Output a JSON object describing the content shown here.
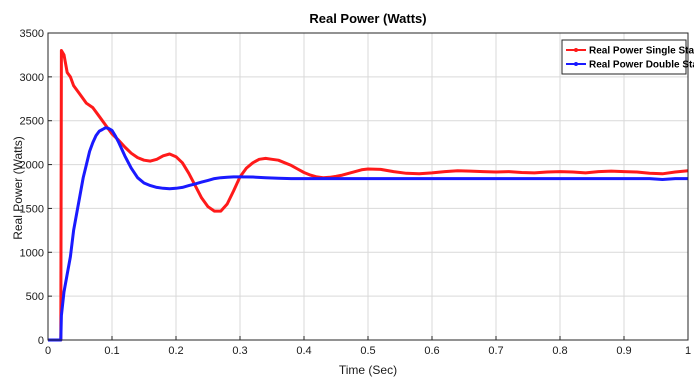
{
  "chart_data": {
    "type": "line",
    "title": "Real Power (Watts)",
    "xlabel": "Time (Sec)",
    "ylabel": "Real Power (Watts)",
    "xlim": [
      0,
      1
    ],
    "ylim": [
      0,
      3500
    ],
    "xticks": [
      0,
      0.1,
      0.2,
      0.3,
      0.4,
      0.5,
      0.6,
      0.7,
      0.8,
      0.9,
      1
    ],
    "xtick_labels": [
      "0",
      "0.1",
      "0.2",
      "0.3",
      "0.4",
      "0.5",
      "0.6",
      "0.7",
      "0.8",
      "0.9",
      "1"
    ],
    "yticks": [
      0,
      500,
      1000,
      1500,
      2000,
      2500,
      3000,
      3500
    ],
    "ytick_labels": [
      "0",
      "500",
      "1000",
      "1500",
      "2000",
      "2500",
      "3000",
      "3500"
    ],
    "grid": true,
    "legend_position": "top-right",
    "series": [
      {
        "name": "Real Power Single Stage",
        "color": "#ff1a1a",
        "x": [
          0,
          0.02,
          0.021,
          0.025,
          0.03,
          0.035,
          0.04,
          0.05,
          0.06,
          0.07,
          0.08,
          0.09,
          0.1,
          0.11,
          0.12,
          0.13,
          0.14,
          0.15,
          0.16,
          0.17,
          0.18,
          0.19,
          0.2,
          0.21,
          0.22,
          0.23,
          0.24,
          0.25,
          0.26,
          0.27,
          0.28,
          0.29,
          0.3,
          0.31,
          0.32,
          0.33,
          0.34,
          0.35,
          0.36,
          0.37,
          0.38,
          0.39,
          0.4,
          0.41,
          0.42,
          0.43,
          0.44,
          0.45,
          0.46,
          0.47,
          0.48,
          0.49,
          0.5,
          0.52,
          0.54,
          0.56,
          0.58,
          0.6,
          0.62,
          0.64,
          0.66,
          0.68,
          0.7,
          0.72,
          0.74,
          0.76,
          0.78,
          0.8,
          0.82,
          0.84,
          0.86,
          0.88,
          0.9,
          0.92,
          0.94,
          0.96,
          0.98,
          1.0
        ],
        "y": [
          0,
          0,
          3300,
          3250,
          3050,
          3000,
          2900,
          2800,
          2700,
          2650,
          2550,
          2450,
          2350,
          2280,
          2200,
          2130,
          2080,
          2050,
          2040,
          2060,
          2100,
          2120,
          2090,
          2020,
          1900,
          1760,
          1620,
          1520,
          1470,
          1470,
          1550,
          1700,
          1860,
          1960,
          2020,
          2060,
          2070,
          2060,
          2050,
          2020,
          1990,
          1950,
          1910,
          1880,
          1860,
          1850,
          1855,
          1865,
          1880,
          1900,
          1920,
          1940,
          1950,
          1945,
          1920,
          1900,
          1895,
          1905,
          1920,
          1930,
          1925,
          1920,
          1915,
          1920,
          1910,
          1905,
          1915,
          1920,
          1915,
          1905,
          1920,
          1925,
          1920,
          1915,
          1900,
          1895,
          1915,
          1930
        ]
      },
      {
        "name": "Real Power Double Stage",
        "color": "#1a1aff",
        "x": [
          0,
          0.02,
          0.021,
          0.025,
          0.03,
          0.035,
          0.04,
          0.045,
          0.05,
          0.055,
          0.06,
          0.065,
          0.07,
          0.075,
          0.08,
          0.085,
          0.09,
          0.095,
          0.1,
          0.105,
          0.11,
          0.12,
          0.13,
          0.14,
          0.15,
          0.16,
          0.17,
          0.18,
          0.19,
          0.2,
          0.21,
          0.22,
          0.23,
          0.24,
          0.25,
          0.26,
          0.27,
          0.28,
          0.29,
          0.3,
          0.32,
          0.34,
          0.36,
          0.38,
          0.4,
          0.45,
          0.5,
          0.55,
          0.6,
          0.65,
          0.7,
          0.75,
          0.8,
          0.85,
          0.9,
          0.92,
          0.94,
          0.96,
          0.98,
          1.0
        ],
        "y": [
          0,
          0,
          280,
          550,
          750,
          950,
          1250,
          1450,
          1650,
          1850,
          2000,
          2150,
          2250,
          2330,
          2380,
          2400,
          2420,
          2410,
          2390,
          2330,
          2260,
          2100,
          1960,
          1850,
          1790,
          1760,
          1740,
          1730,
          1725,
          1730,
          1740,
          1760,
          1780,
          1800,
          1820,
          1840,
          1850,
          1855,
          1860,
          1860,
          1858,
          1850,
          1845,
          1840,
          1840,
          1840,
          1840,
          1840,
          1840,
          1840,
          1840,
          1840,
          1840,
          1840,
          1840,
          1840,
          1840,
          1830,
          1840,
          1840
        ]
      }
    ]
  }
}
